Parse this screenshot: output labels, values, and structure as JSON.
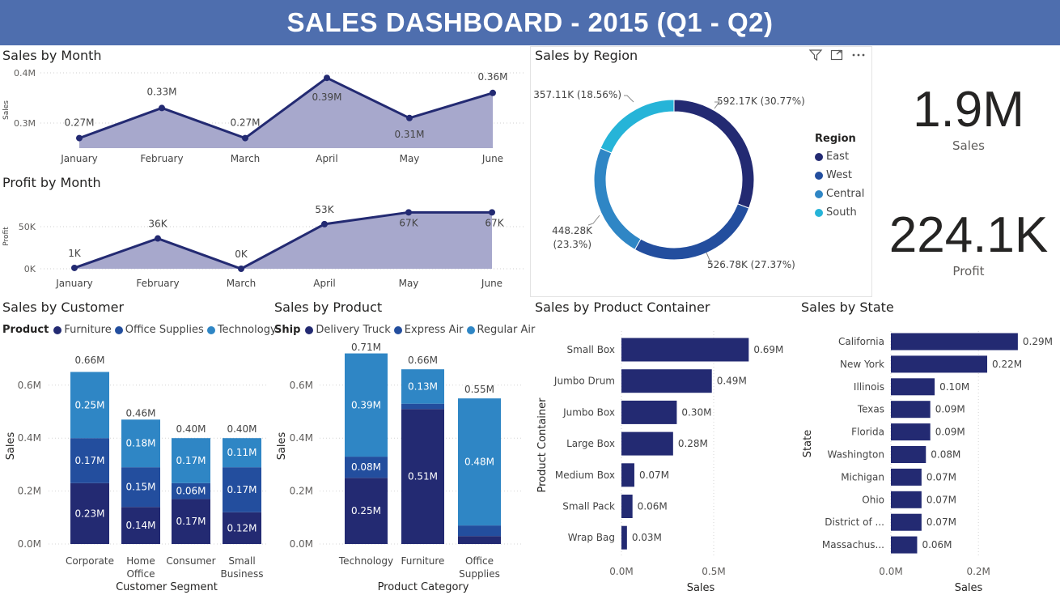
{
  "dashboard_title": "SALES DASHBOARD - 2015 (Q1 - Q2)",
  "colors": {
    "navy": "#232A72",
    "mid": "#234E9E",
    "blue": "#2F86C5",
    "cyan": "#26B4D8",
    "area": "#A7A8CC",
    "banner": "#4E6EAE"
  },
  "cards": [
    {
      "value": "1.9M",
      "label": "Sales"
    },
    {
      "value": "224.1K",
      "label": "Profit"
    }
  ],
  "chart_data": [
    {
      "id": "sales_month",
      "type": "area",
      "title": "Sales by Month",
      "ylabel": "Sales",
      "categories": [
        "January",
        "February",
        "March",
        "April",
        "May",
        "June"
      ],
      "values": [
        0.27,
        0.33,
        0.27,
        0.39,
        0.31,
        0.36
      ],
      "labels": [
        "0.27M",
        "0.33M",
        "0.27M",
        "0.39M",
        "0.31M",
        "0.36M"
      ],
      "yticks": [
        {
          "v": 0.3,
          "t": "0.3M"
        },
        {
          "v": 0.4,
          "t": "0.4M"
        }
      ]
    },
    {
      "id": "profit_month",
      "type": "area",
      "title": "Profit by Month",
      "ylabel": "Profit",
      "categories": [
        "January",
        "February",
        "March",
        "April",
        "May",
        "June"
      ],
      "values": [
        1,
        36,
        0,
        53,
        67,
        67
      ],
      "labels": [
        "1K",
        "36K",
        "0K",
        "53K",
        "67K",
        "67K"
      ],
      "yticks": [
        {
          "v": 0,
          "t": "0K"
        },
        {
          "v": 50,
          "t": "50K"
        }
      ]
    },
    {
      "id": "sales_region",
      "type": "pie",
      "title": "Sales by Region",
      "legend_title": "Region",
      "slices": [
        {
          "name": "East",
          "value": 592.17,
          "label": "592.17K (30.77%)"
        },
        {
          "name": "West",
          "value": 526.78,
          "label": "526.78K (27.37%)"
        },
        {
          "name": "Central",
          "value": 448.28,
          "label1": "448.28K",
          "label2": "(23.3%)"
        },
        {
          "name": "South",
          "value": 357.11,
          "label": "357.11K (18.56%)"
        }
      ]
    },
    {
      "id": "sales_customer",
      "type": "bar",
      "title": "Sales by Customer",
      "legend_title": "Product",
      "xlabel": "Customer Segment",
      "ylabel": "Sales",
      "categories": [
        [
          "Corporate"
        ],
        [
          "Home",
          "Office"
        ],
        [
          "Consumer"
        ],
        [
          "Small",
          "Business"
        ]
      ],
      "yticks": [
        "0.0M",
        "0.2M",
        "0.4M",
        "0.6M"
      ],
      "series": [
        {
          "name": "Furniture",
          "values": [
            0.23,
            0.14,
            0.17,
            0.12
          ],
          "labels": [
            "0.23M",
            "0.14M",
            "0.17M",
            "0.12M"
          ]
        },
        {
          "name": "Office Supplies",
          "values": [
            0.17,
            0.15,
            0.06,
            0.17
          ],
          "labels": [
            "0.17M",
            "0.15M",
            "0.06M",
            "0.17M"
          ]
        },
        {
          "name": "Technology",
          "values": [
            0.25,
            0.18,
            0.17,
            0.11
          ],
          "labels": [
            "0.25M",
            "0.18M",
            "0.17M",
            "0.11M"
          ]
        }
      ],
      "totals": [
        "0.66M",
        "0.46M",
        "0.40M",
        "0.40M"
      ],
      "total_values": [
        0.66,
        0.46,
        0.4,
        0.4
      ]
    },
    {
      "id": "sales_product",
      "type": "bar",
      "title": "Sales by Product",
      "legend_title": "Ship",
      "xlabel": "Product Category",
      "ylabel": "Sales",
      "categories": [
        [
          "Technology"
        ],
        [
          "Furniture"
        ],
        [
          "Office",
          "Supplies"
        ]
      ],
      "yticks": [
        "0.0M",
        "0.2M",
        "0.4M",
        "0.6M"
      ],
      "series": [
        {
          "name": "Delivery Truck",
          "values": [
            0.25,
            0.51,
            0.03
          ],
          "labels": [
            "0.25M",
            "0.51M",
            ""
          ]
        },
        {
          "name": "Express Air",
          "values": [
            0.08,
            0.02,
            0.04
          ],
          "labels": [
            "0.08M",
            "",
            ""
          ]
        },
        {
          "name": "Regular Air",
          "values": [
            0.39,
            0.13,
            0.48
          ],
          "labels": [
            "0.39M",
            "0.13M",
            "0.48M"
          ]
        }
      ],
      "totals": [
        "0.71M",
        "0.66M",
        "0.55M"
      ],
      "total_values": [
        0.71,
        0.66,
        0.55
      ]
    },
    {
      "id": "sales_container",
      "type": "bar",
      "title": "Sales by Product Container",
      "xlabel": "Sales",
      "ylabel": "Product Container",
      "categories": [
        "Small Box",
        "Jumbo Drum",
        "Jumbo Box",
        "Large Box",
        "Medium Box",
        "Small Pack",
        "Wrap Bag"
      ],
      "values": [
        0.69,
        0.49,
        0.3,
        0.28,
        0.07,
        0.06,
        0.03
      ],
      "labels": [
        "0.69M",
        "0.49M",
        "0.30M",
        "0.28M",
        "0.07M",
        "0.06M",
        "0.03M"
      ],
      "xticks": [
        {
          "v": 0,
          "t": "0.0M"
        },
        {
          "v": 0.5,
          "t": "0.5M"
        }
      ]
    },
    {
      "id": "sales_state",
      "type": "bar",
      "title": "Sales by State",
      "xlabel": "Sales",
      "ylabel": "State",
      "categories": [
        "California",
        "New York",
        "Illinois",
        "Texas",
        "Florida",
        "Washington",
        "Michigan",
        "Ohio",
        "District of ...",
        "Massachus..."
      ],
      "values": [
        0.29,
        0.22,
        0.1,
        0.09,
        0.09,
        0.08,
        0.07,
        0.07,
        0.07,
        0.06
      ],
      "labels": [
        "0.29M",
        "0.22M",
        "0.10M",
        "0.09M",
        "0.09M",
        "0.08M",
        "0.07M",
        "0.07M",
        "0.07M",
        "0.06M"
      ],
      "xticks": [
        {
          "v": 0,
          "t": "0.0M"
        },
        {
          "v": 0.2,
          "t": "0.2M"
        }
      ]
    }
  ]
}
